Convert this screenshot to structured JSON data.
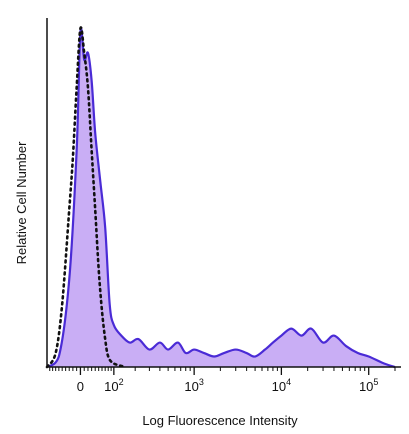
{
  "chart_data": {
    "type": "area",
    "xlabel": "Log Fluorescence Intensity",
    "ylabel": "Relative Cell Number",
    "x_scale": "biexponential",
    "xlim": [
      -100,
      200000
    ],
    "ylim": [
      0,
      100
    ],
    "grid": false,
    "x_ticks": [
      {
        "value": 0,
        "base": "0",
        "exp": ""
      },
      {
        "value": 100,
        "base": "10",
        "exp": "2"
      },
      {
        "value": 1000,
        "base": "10",
        "exp": "3"
      },
      {
        "value": 10000,
        "base": "10",
        "exp": "4"
      },
      {
        "value": 100000,
        "base": "10",
        "exp": "5"
      }
    ],
    "colors": {
      "stained_fill": "#c9aef5",
      "stained_line": "#4a2bd6",
      "control_line": "#111111",
      "axis": "#111111"
    },
    "series": [
      {
        "style": "filled-solid",
        "x": [
          -100,
          -60,
          -30,
          -10,
          0,
          10,
          20,
          30,
          40,
          55,
          70,
          85,
          100,
          130,
          170,
          220,
          300,
          400,
          500,
          650,
          800,
          1000,
          1300,
          1700,
          2200,
          3000,
          4000,
          5000,
          6500,
          8000,
          10000,
          13000,
          17000,
          22000,
          30000,
          40000,
          55000,
          75000,
          100000,
          150000,
          200000
        ],
        "values": [
          0,
          3,
          25,
          62,
          96,
          88,
          90,
          82,
          67,
          53,
          40,
          18,
          12,
          9,
          7,
          8,
          5,
          7,
          5,
          7,
          4,
          5,
          4,
          3,
          4,
          5,
          4,
          3,
          5,
          7,
          9,
          11,
          9,
          11,
          7,
          9,
          6,
          4,
          3,
          1,
          0
        ]
      },
      {
        "style": "dotted",
        "x": [
          -100,
          -70,
          -50,
          -30,
          -20,
          -10,
          0,
          10,
          20,
          30,
          40,
          50,
          60,
          70,
          80,
          100,
          150
        ],
        "values": [
          0,
          4,
          18,
          45,
          60,
          80,
          97,
          90,
          80,
          62,
          45,
          28,
          16,
          8,
          3,
          1,
          0
        ]
      }
    ]
  }
}
